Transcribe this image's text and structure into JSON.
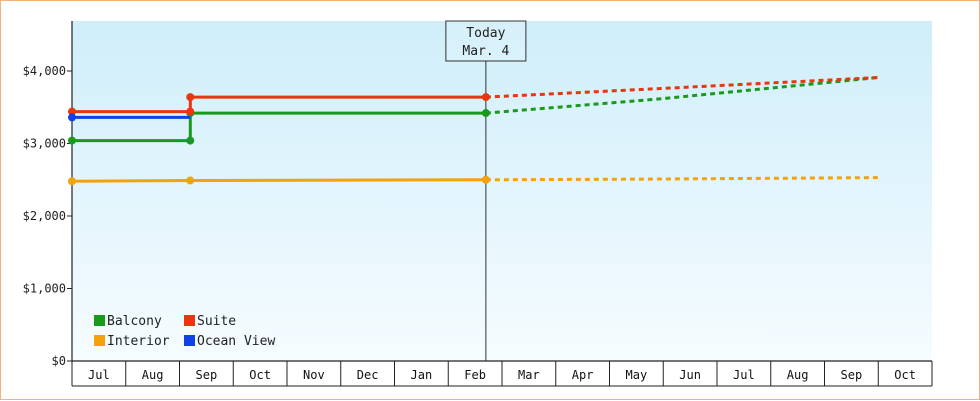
{
  "chart_data": {
    "type": "line",
    "title": "",
    "xlabel": "",
    "ylabel": "",
    "y_ticks": [
      "$0",
      "$1,000",
      "$2,000",
      "$3,000",
      "$4,000"
    ],
    "ylim": [
      0,
      4700
    ],
    "x_tick_labels": [
      "Jul",
      "Aug",
      "Sep",
      "Oct",
      "Nov",
      "Dec",
      "Jan",
      "Feb",
      "Mar",
      "Apr",
      "May",
      "Jun",
      "Jul",
      "Aug",
      "Sep",
      "Oct"
    ],
    "today_marker": {
      "line1": "Today",
      "line2": "Mar. 4",
      "x": 7.7
    },
    "grid": false,
    "legend_position": "bottom-left",
    "series": [
      {
        "name": "Balcony",
        "color": "#1a9a1a",
        "steps": [
          {
            "x": 0.0,
            "y": 3040
          },
          {
            "x": 2.2,
            "y": 3040
          },
          {
            "x": 2.2,
            "y": 3420
          },
          {
            "x": 7.7,
            "y": 3420
          }
        ],
        "markers": [
          0,
          1,
          2,
          3
        ],
        "forecast": [
          {
            "x": 7.7,
            "y": 3420
          },
          {
            "x": 11.0,
            "y": 3620
          },
          {
            "x": 15.0,
            "y": 3910
          }
        ]
      },
      {
        "name": "Suite",
        "color": "#e8360e",
        "steps": [
          {
            "x": 0.0,
            "y": 3440
          },
          {
            "x": 2.2,
            "y": 3440
          },
          {
            "x": 2.2,
            "y": 3640
          },
          {
            "x": 7.7,
            "y": 3640
          }
        ],
        "markers": [
          0,
          1,
          2,
          3
        ],
        "forecast": [
          {
            "x": 7.7,
            "y": 3640
          },
          {
            "x": 11.0,
            "y": 3760
          },
          {
            "x": 15.0,
            "y": 3910
          }
        ]
      },
      {
        "name": "Interior",
        "color": "#f4a20c",
        "steps": [
          {
            "x": 0.0,
            "y": 2480
          },
          {
            "x": 2.2,
            "y": 2490
          },
          {
            "x": 7.7,
            "y": 2500
          }
        ],
        "markers": [
          0,
          1,
          2
        ],
        "forecast": [
          {
            "x": 7.7,
            "y": 2500
          },
          {
            "x": 11.0,
            "y": 2510
          },
          {
            "x": 15.0,
            "y": 2530
          }
        ]
      },
      {
        "name": "Ocean View",
        "color": "#1040e8",
        "steps": [
          {
            "x": 0.0,
            "y": 3360
          },
          {
            "x": 2.2,
            "y": 3360
          }
        ],
        "markers": [
          0
        ],
        "forecast": []
      }
    ]
  }
}
